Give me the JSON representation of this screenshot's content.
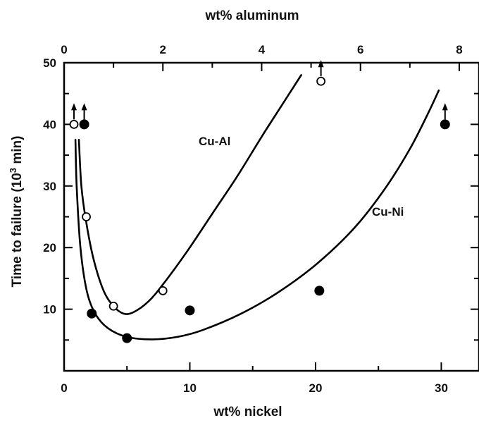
{
  "chart_data": {
    "type": "scatter",
    "title": "",
    "xlabel": "wt% nickel",
    "x2label": "wt% aluminum",
    "ylabel": "Time to failure (10",
    "ylabel_sup": "3",
    "ylabel_tail": " min)",
    "xlim": [
      0,
      33
    ],
    "x2lim": [
      0,
      8.4
    ],
    "ylim": [
      0,
      50
    ],
    "x_ticks": [
      0,
      10,
      20,
      30
    ],
    "x2_ticks": [
      0,
      2,
      4,
      6,
      8
    ],
    "y_ticks": [
      10,
      20,
      30,
      40,
      50
    ],
    "grid": false,
    "series": [
      {
        "name": "Cu-Al",
        "axis": "top",
        "marker": "open-circle",
        "points": [
          {
            "x": 0.2,
            "y": 40,
            "arrow_up": true
          },
          {
            "x": 0.45,
            "y": 25
          },
          {
            "x": 1.0,
            "y": 10.5
          },
          {
            "x": 2.0,
            "y": 13
          },
          {
            "x": 5.2,
            "y": 47,
            "arrow_up": true
          }
        ],
        "curve": [
          [
            0.3,
            37.5
          ],
          [
            0.35,
            30
          ],
          [
            0.45,
            24
          ],
          [
            0.6,
            18
          ],
          [
            0.8,
            13
          ],
          [
            1.0,
            10.5
          ],
          [
            1.2,
            9.3
          ],
          [
            1.4,
            9.5
          ],
          [
            1.7,
            11.2
          ],
          [
            2.0,
            14
          ],
          [
            2.5,
            19.5
          ],
          [
            3.0,
            25.5
          ],
          [
            3.5,
            31.5
          ],
          [
            4.0,
            38
          ],
          [
            4.4,
            43
          ],
          [
            4.8,
            48
          ]
        ]
      },
      {
        "name": "Cu-Ni",
        "axis": "bottom",
        "marker": "filled-circle",
        "points": [
          {
            "x": 1.6,
            "y": 40,
            "arrow_up": true
          },
          {
            "x": 2.2,
            "y": 9.3
          },
          {
            "x": 5.0,
            "y": 5.3
          },
          {
            "x": 10.0,
            "y": 9.8
          },
          {
            "x": 20.3,
            "y": 13
          },
          {
            "x": 30.3,
            "y": 40,
            "arrow_up": true
          }
        ],
        "curve": [
          [
            0.9,
            37.5
          ],
          [
            1.0,
            30
          ],
          [
            1.3,
            20
          ],
          [
            1.8,
            13
          ],
          [
            2.5,
            9.2
          ],
          [
            3.5,
            6.9
          ],
          [
            5.0,
            5.5
          ],
          [
            7.0,
            5.1
          ],
          [
            9.0,
            5.5
          ],
          [
            11.0,
            6.6
          ],
          [
            14.0,
            9.2
          ],
          [
            17.0,
            12.7
          ],
          [
            20.0,
            17.2
          ],
          [
            23.0,
            23
          ],
          [
            25.5,
            29.5
          ],
          [
            27.5,
            36
          ],
          [
            29.0,
            42
          ],
          [
            29.8,
            45.5
          ]
        ]
      }
    ]
  }
}
